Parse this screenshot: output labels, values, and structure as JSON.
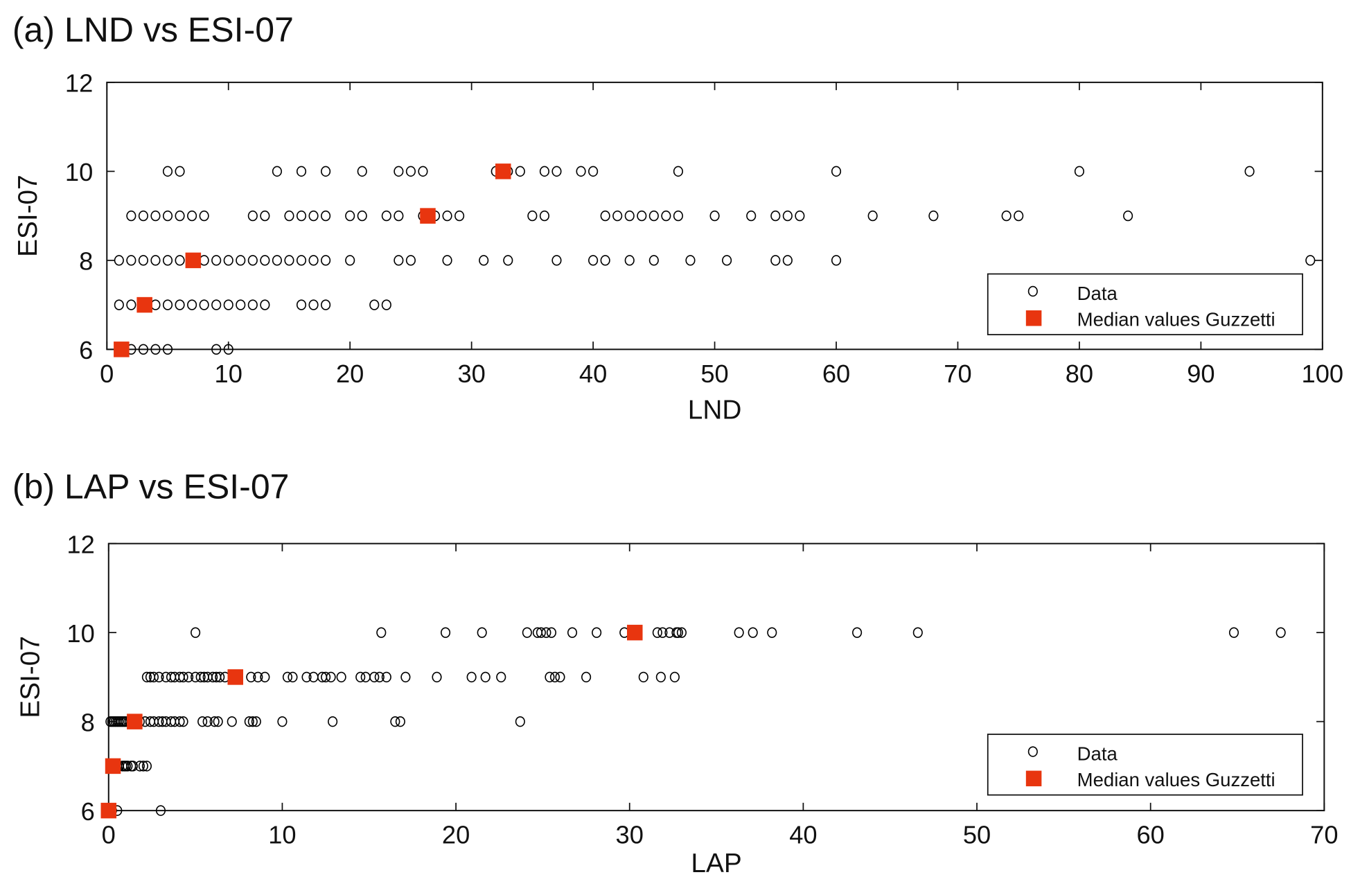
{
  "colors": {
    "data": "#000000",
    "median": "#e8350f"
  },
  "chart_data": [
    {
      "type": "scatter",
      "title": "(a) LND vs ESI-07",
      "xlabel": "LND",
      "ylabel": "ESI-07",
      "xlim": [
        0,
        100
      ],
      "ylim": [
        6,
        12
      ],
      "xticks": [
        0,
        10,
        20,
        30,
        40,
        50,
        60,
        70,
        80,
        90,
        100
      ],
      "yticks": [
        6,
        8,
        10,
        12
      ],
      "grid": false,
      "legend_position": "bottom-right",
      "legend": [
        "Data",
        "Median values Guzzetti"
      ],
      "series": [
        {
          "name": "Data",
          "marker": "open-circle",
          "rows": [
            {
              "y": 10,
              "x": [
                5,
                6,
                14,
                16,
                18,
                21,
                24,
                25,
                26,
                32,
                33,
                34,
                36,
                37,
                39,
                40,
                47,
                60,
                80,
                94
              ]
            },
            {
              "y": 9,
              "x": [
                2,
                3,
                4,
                5,
                6,
                7,
                8,
                12,
                13,
                15,
                16,
                17,
                18,
                20,
                21,
                23,
                24,
                26,
                27,
                28,
                29,
                35,
                36,
                41,
                42,
                43,
                44,
                45,
                46,
                47,
                50,
                53,
                55,
                56,
                57,
                63,
                68,
                74,
                75,
                84
              ]
            },
            {
              "y": 8,
              "x": [
                1,
                2,
                3,
                4,
                5,
                6,
                8,
                9,
                10,
                11,
                12,
                13,
                14,
                15,
                16,
                17,
                18,
                20,
                24,
                25,
                28,
                31,
                33,
                37,
                40,
                41,
                43,
                45,
                48,
                51,
                55,
                56,
                60,
                99
              ]
            },
            {
              "y": 7,
              "x": [
                1,
                2,
                3,
                4,
                5,
                6,
                7,
                8,
                9,
                10,
                11,
                12,
                13,
                16,
                17,
                18,
                22,
                23
              ]
            },
            {
              "y": 6,
              "x": [
                1,
                2,
                3,
                4,
                5,
                9,
                10
              ]
            }
          ]
        },
        {
          "name": "Median values Guzzetti",
          "marker": "filled-square",
          "points": [
            [
              1.2,
              6
            ],
            [
              3.1,
              7
            ],
            [
              7.1,
              8
            ],
            [
              26.4,
              9
            ],
            [
              32.6,
              10
            ]
          ]
        }
      ]
    },
    {
      "type": "scatter",
      "title": "(b) LAP vs ESI-07",
      "xlabel": "LAP",
      "ylabel": "ESI-07",
      "xlim": [
        0,
        70
      ],
      "ylim": [
        6,
        12
      ],
      "xticks": [
        0,
        10,
        20,
        30,
        40,
        50,
        60,
        70
      ],
      "yticks": [
        6,
        8,
        10,
        12
      ],
      "grid": false,
      "legend_position": "bottom-right",
      "legend": [
        "Data",
        "Median values Guzzetti"
      ],
      "series": [
        {
          "name": "Data",
          "marker": "open-circle",
          "rows": [
            {
              "y": 10,
              "x": [
                5.0,
                15.7,
                19.4,
                21.5,
                24.1,
                24.7,
                24.9,
                25.2,
                25.5,
                26.7,
                28.1,
                29.7,
                31.6,
                31.9,
                32.3,
                32.7,
                32.8,
                33.0,
                36.3,
                37.1,
                38.2,
                43.1,
                46.6,
                64.8,
                67.5
              ]
            },
            {
              "y": 9,
              "x": [
                2.2,
                2.4,
                2.6,
                2.9,
                3.3,
                3.6,
                3.8,
                4.1,
                4.3,
                4.6,
                5.0,
                5.3,
                5.5,
                5.7,
                6.0,
                6.2,
                6.4,
                6.7,
                8.2,
                8.6,
                9.0,
                10.3,
                10.6,
                11.4,
                11.8,
                12.3,
                12.5,
                12.8,
                13.4,
                14.5,
                14.8,
                15.3,
                15.6,
                16.0,
                17.1,
                18.9,
                20.9,
                21.7,
                22.6,
                25.4,
                25.7,
                26.0,
                27.5,
                30.8,
                31.8,
                32.6
              ]
            },
            {
              "y": 8,
              "x": [
                0.1,
                0.2,
                0.3,
                0.4,
                0.5,
                0.6,
                0.7,
                0.8,
                0.9,
                1.0,
                1.2,
                1.8,
                2.1,
                2.4,
                2.6,
                2.9,
                3.1,
                3.3,
                3.6,
                3.8,
                4.1,
                4.3,
                5.4,
                5.7,
                6.1,
                6.3,
                7.1,
                8.1,
                8.3,
                8.5,
                10.0,
                12.9,
                16.5,
                16.8,
                23.7
              ]
            },
            {
              "y": 7,
              "x": [
                0.1,
                0.2,
                0.5,
                0.6,
                0.8,
                0.9,
                1.0,
                1.1,
                1.3,
                1.4,
                1.8,
                2.0,
                2.2
              ]
            },
            {
              "y": 6,
              "x": [
                0.1,
                0.2,
                0.5,
                3.0
              ]
            }
          ]
        },
        {
          "name": "Median values Guzzetti",
          "marker": "filled-square",
          "points": [
            [
              0.0,
              6
            ],
            [
              0.25,
              7
            ],
            [
              1.5,
              8
            ],
            [
              7.3,
              9
            ],
            [
              30.3,
              10
            ]
          ]
        }
      ]
    }
  ]
}
